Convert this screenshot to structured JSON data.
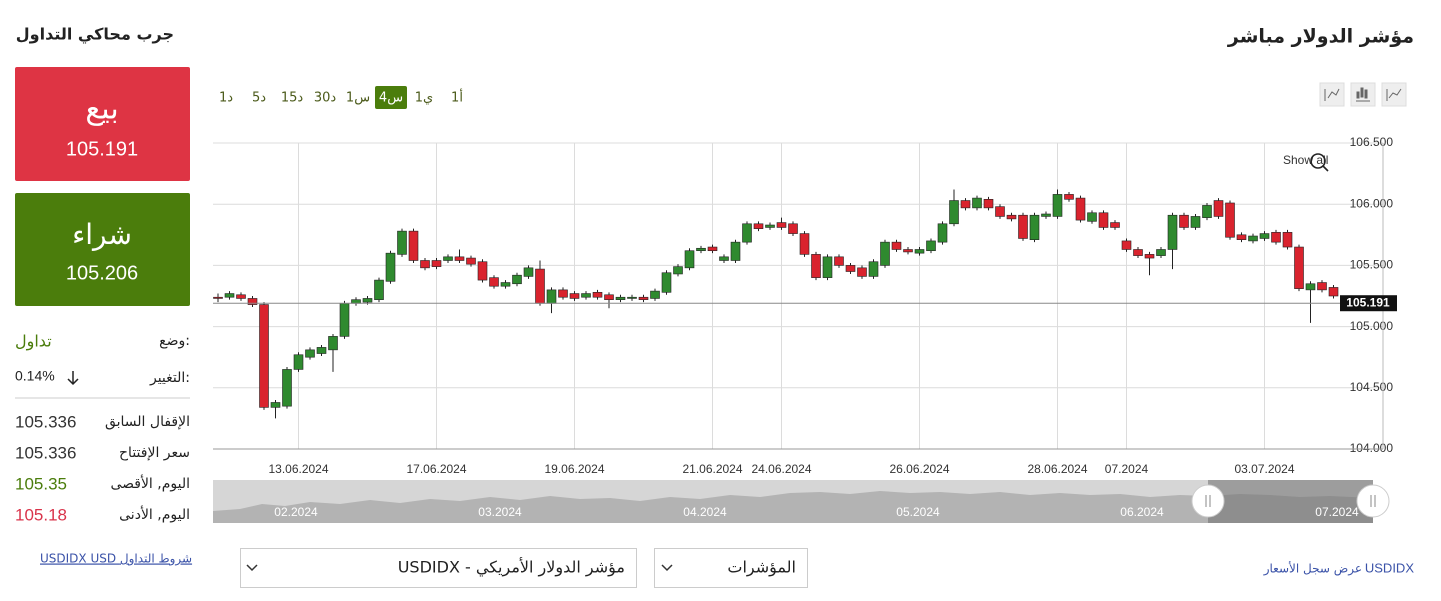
{
  "page_title": "مؤشر الدولار مباشر",
  "side_panel": {
    "title": "جرب محاكي التداول",
    "sell": {
      "label": "بيع",
      "price": "105.191"
    },
    "buy": {
      "label": "شراء",
      "price": "105.206"
    },
    "status": {
      "label": "وضع:",
      "value": "تداول"
    },
    "change": {
      "label": "التغيير:",
      "value": "0.14%"
    },
    "stats": [
      {
        "label": "الإقفال السابق",
        "value": "105.336"
      },
      {
        "label": "سعر الإفتتاح",
        "value": "105.336"
      },
      {
        "label": "اليوم, الأقصى",
        "value": "105.35"
      },
      {
        "label": "اليوم, الأدنى",
        "value": "105.18"
      }
    ],
    "terms_link": "USDIDX USD شروط التداول"
  },
  "timeframes": [
    "1د",
    "5د",
    "15د",
    "30د",
    "1س",
    "4س",
    "1ي",
    "1أ"
  ],
  "active_timeframe": 5,
  "zoom_reset": "Show all",
  "chart_data": {
    "type": "candlestick",
    "categories": [
      null,
      null,
      null,
      null,
      null,
      null,
      null,
      "13.06.2024",
      null,
      null,
      null,
      null,
      null,
      null,
      null,
      null,
      null,
      null,
      null,
      "17.06.2024",
      null,
      null,
      null,
      null,
      null,
      null,
      null,
      null,
      null,
      null,
      null,
      "19.06.2024",
      null,
      null,
      null,
      null,
      null,
      null,
      null,
      null,
      null,
      null,
      null,
      "21.06.2024",
      null,
      null,
      null,
      null,
      null,
      "24.06.2024",
      null,
      null,
      null,
      null,
      null,
      null,
      null,
      null,
      null,
      null,
      null,
      "26.06.2024",
      null,
      null,
      null,
      null,
      null,
      null,
      null,
      null,
      null,
      null,
      null,
      "28.06.2024",
      null,
      null,
      null,
      null,
      null,
      "07.2024",
      null,
      null,
      null,
      null,
      null,
      null,
      null,
      null,
      null,
      null,
      null,
      "03.07.2024",
      null,
      null,
      null,
      null,
      null,
      null
    ],
    "open": [
      105.24,
      105.24,
      105.26,
      105.23,
      105.18,
      104.34,
      104.35,
      104.65,
      104.75,
      104.78,
      104.81,
      104.92,
      105.19,
      105.2,
      105.22,
      105.37,
      105.59,
      105.78,
      105.54,
      105.54,
      105.54,
      105.57,
      105.56,
      105.53,
      105.4,
      105.33,
      105.35,
      105.41,
      105.47,
      105.19,
      105.3,
      105.27,
      105.24,
      105.28,
      105.26,
      105.22,
      105.23,
      105.24,
      105.23,
      105.28,
      105.43,
      105.48,
      105.62,
      105.65,
      105.54,
      105.54,
      105.69,
      105.84,
      105.81,
      105.85,
      105.84,
      105.76,
      105.59,
      105.4,
      105.57,
      105.5,
      105.48,
      105.41,
      105.5,
      105.69,
      105.63,
      105.6,
      105.62,
      105.69,
      105.84,
      106.03,
      105.97,
      106.04,
      105.98,
      105.91,
      105.91,
      105.71,
      105.9,
      105.9,
      106.08,
      106.05,
      105.86,
      105.93,
      105.85,
      105.7,
      105.63,
      105.59,
      105.58,
      105.63,
      105.91,
      105.81,
      105.89,
      106.03,
      106.01,
      105.75,
      105.7,
      105.72,
      105.77,
      105.77,
      105.65,
      105.3,
      105.36,
      105.32
    ],
    "high": [
      105.27,
      105.29,
      105.28,
      105.25,
      105.2,
      104.4,
      104.67,
      104.79,
      104.83,
      104.85,
      104.94,
      105.21,
      105.24,
      105.25,
      105.4,
      105.62,
      105.8,
      105.8,
      105.56,
      105.56,
      105.59,
      105.63,
      105.58,
      105.55,
      105.42,
      105.38,
      105.44,
      105.5,
      105.54,
      105.32,
      105.32,
      105.29,
      105.29,
      105.3,
      105.28,
      105.26,
      105.26,
      105.26,
      105.31,
      105.46,
      105.51,
      105.64,
      105.66,
      105.67,
      105.59,
      105.71,
      105.86,
      105.86,
      105.85,
      105.89,
      105.86,
      105.78,
      105.61,
      105.59,
      105.59,
      105.52,
      105.5,
      105.55,
      105.71,
      105.71,
      105.65,
      105.65,
      105.72,
      105.86,
      106.12,
      106.05,
      106.07,
      106.06,
      106.0,
      105.93,
      105.93,
      105.93,
      105.94,
      106.12,
      106.1,
      106.07,
      105.95,
      105.95,
      105.87,
      105.72,
      105.65,
      105.61,
      105.65,
      105.93,
      105.93,
      105.92,
      106.01,
      106.05,
      106.03,
      105.77,
      105.76,
      105.78,
      105.79,
      105.79,
      105.67,
      105.37,
      105.38,
      105.34
    ],
    "low": [
      105.2,
      105.22,
      105.21,
      105.16,
      104.32,
      104.25,
      104.33,
      104.63,
      104.73,
      104.76,
      104.63,
      104.9,
      105.17,
      105.18,
      105.2,
      105.35,
      105.57,
      105.52,
      105.46,
      105.47,
      105.52,
      105.52,
      105.49,
      105.36,
      105.31,
      105.31,
      105.33,
      105.39,
      105.17,
      105.11,
      105.22,
      105.21,
      105.22,
      105.22,
      105.15,
      105.2,
      105.21,
      105.2,
      105.21,
      105.26,
      105.41,
      105.46,
      105.6,
      105.6,
      105.52,
      105.52,
      105.67,
      105.78,
      105.79,
      105.79,
      105.74,
      105.57,
      105.38,
      105.38,
      105.48,
      105.43,
      105.39,
      105.39,
      105.48,
      105.61,
      105.59,
      105.58,
      105.6,
      105.67,
      105.82,
      105.95,
      105.95,
      105.95,
      105.88,
      105.86,
      105.7,
      105.69,
      105.88,
      105.88,
      106.02,
      105.85,
      105.84,
      105.79,
      105.79,
      105.61,
      105.56,
      105.42,
      105.56,
      105.47,
      105.79,
      105.79,
      105.87,
      105.88,
      105.71,
      105.69,
      105.68,
      105.7,
      105.67,
      105.63,
      105.29,
      105.03,
      105.28,
      105.23
    ],
    "close": [
      105.23,
      105.27,
      105.23,
      105.18,
      104.34,
      104.38,
      104.65,
      104.77,
      104.81,
      104.83,
      104.92,
      105.19,
      105.22,
      105.23,
      105.38,
      105.6,
      105.78,
      105.54,
      105.48,
      105.49,
      105.57,
      105.54,
      105.51,
      105.38,
      105.33,
      105.36,
      105.42,
      105.48,
      105.19,
      105.3,
      105.24,
      105.23,
      105.27,
      105.24,
      105.22,
      105.24,
      105.24,
      105.22,
      105.29,
      105.44,
      105.49,
      105.62,
      105.64,
      105.62,
      105.57,
      105.69,
      105.84,
      105.8,
      105.83,
      105.81,
      105.76,
      105.59,
      105.4,
      105.57,
      105.5,
      105.45,
      105.41,
      105.53,
      105.69,
      105.63,
      105.61,
      105.63,
      105.7,
      105.84,
      106.03,
      105.97,
      106.05,
      105.97,
      105.9,
      105.88,
      105.72,
      105.91,
      105.92,
      106.08,
      106.04,
      105.87,
      105.93,
      105.81,
      105.81,
      105.63,
      105.58,
      105.56,
      105.63,
      105.91,
      105.81,
      105.9,
      105.99,
      105.9,
      105.73,
      105.71,
      105.74,
      105.76,
      105.69,
      105.65,
      105.31,
      105.35,
      105.3,
      105.25
    ],
    "up_color": "#2f8a2f",
    "down_color": "#d9232e",
    "ylim": [
      104,
      106.5
    ],
    "yticks": [
      {
        "value": 104,
        "label": "104.000"
      },
      {
        "value": 104.5,
        "label": "104.500"
      },
      {
        "value": 105,
        "label": "105.000"
      },
      {
        "value": 105.5,
        "label": "105.500"
      },
      {
        "value": 106,
        "label": "106.000"
      },
      {
        "value": 106.5,
        "label": "106.500"
      }
    ],
    "grid": true,
    "last_price": 105.191
  },
  "navigator": {
    "labels": [
      "02.2024",
      "03.2024",
      "04.2024",
      "05.2024",
      "06.2024",
      "07.2024"
    ]
  },
  "bottom": {
    "instrument": "USDIDX - مؤشر الدولار الأمريكي",
    "category": "المؤشرات",
    "history_link": "عرض سجل الأسعار",
    "history_symbol": "USDIDX"
  }
}
